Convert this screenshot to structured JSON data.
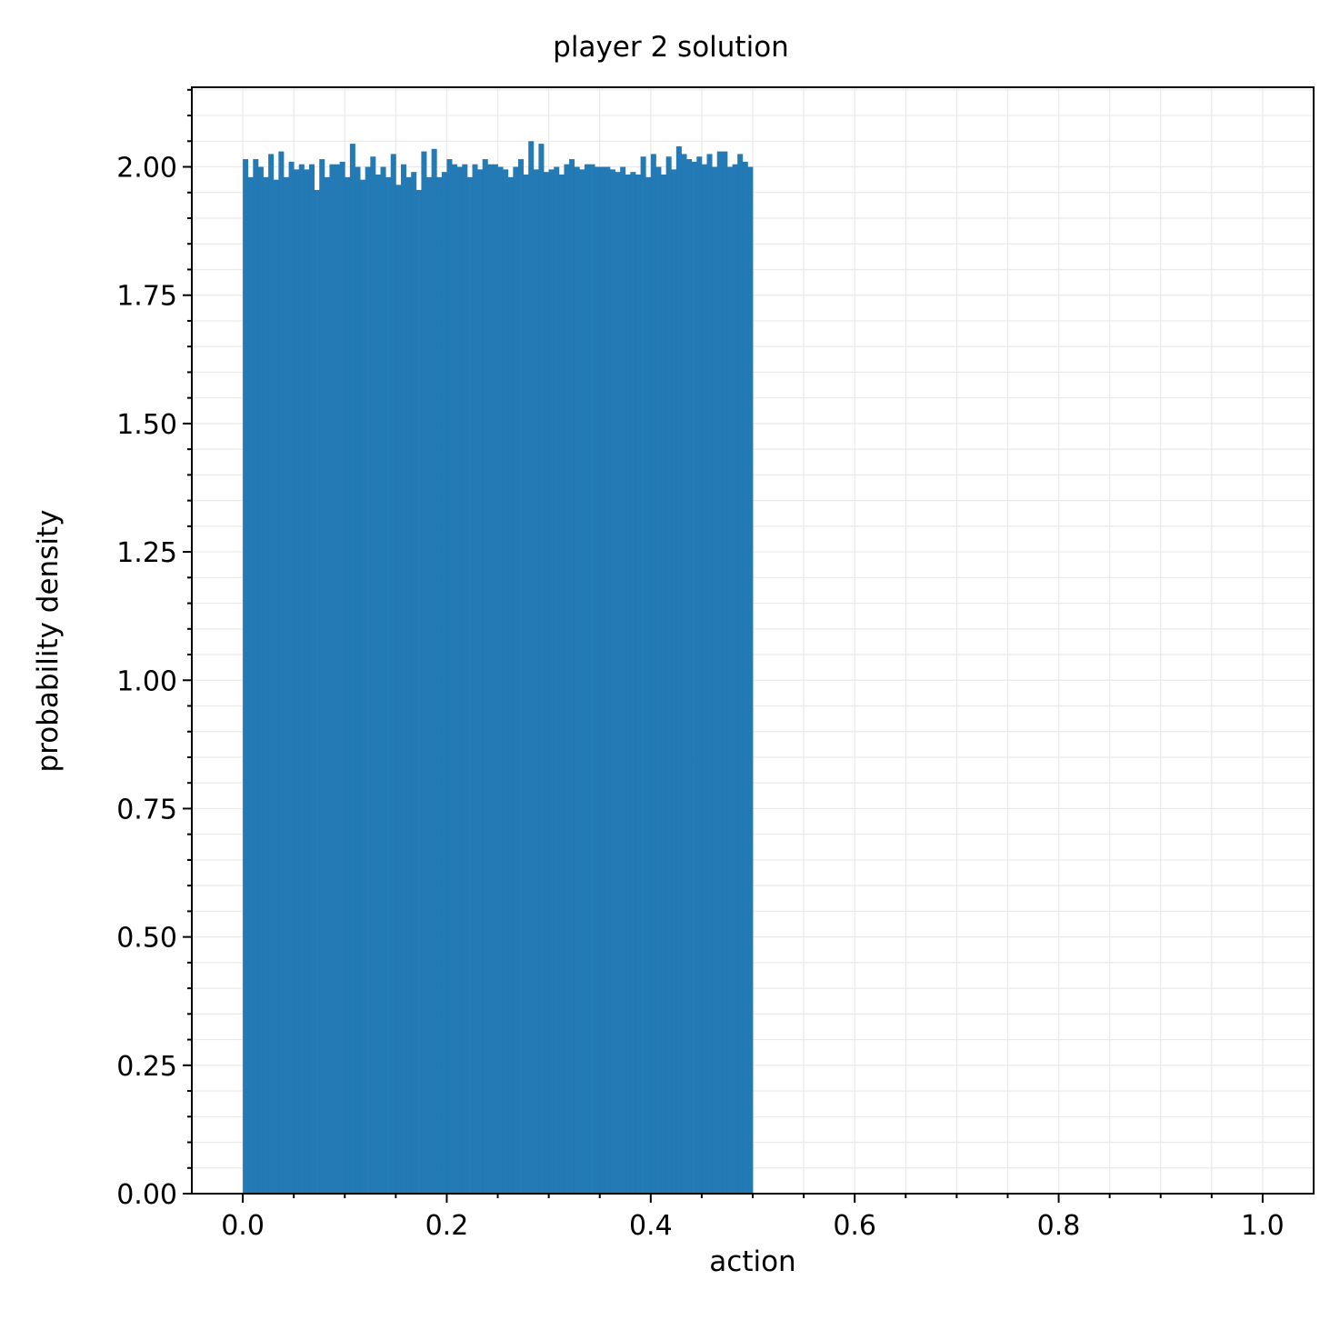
{
  "chart_data": {
    "type": "bar",
    "title": "player 2 solution",
    "xlabel": "action",
    "ylabel": "probability density",
    "xlim": [
      -0.05,
      1.05
    ],
    "ylim": [
      0,
      2.155
    ],
    "xticks": [
      "0.0",
      "0.2",
      "0.4",
      "0.6",
      "0.8",
      "1.0"
    ],
    "yticks": [
      "0.00",
      "0.25",
      "0.50",
      "0.75",
      "1.00",
      "1.25",
      "1.50",
      "1.75",
      "2.00"
    ],
    "grid": "minor",
    "bar_color": "#1f77b4",
    "bin_edges_range": [
      0.0,
      0.5
    ],
    "bin_count": 100,
    "values": [
      2.015,
      1.98,
      2.015,
      2.0,
      1.98,
      2.025,
      1.975,
      2.03,
      1.98,
      2.01,
      1.995,
      2.005,
      1.995,
      2.005,
      1.955,
      2.015,
      1.98,
      2.005,
      2.005,
      2.01,
      1.98,
      2.045,
      2.0,
      1.975,
      2.0,
      2.02,
      1.985,
      2.0,
      1.98,
      2.025,
      1.965,
      2.005,
      1.98,
      1.99,
      1.955,
      2.03,
      1.98,
      2.035,
      1.98,
      1.99,
      2.015,
      2.005,
      2.0,
      2.005,
      1.98,
      2.005,
      1.995,
      2.015,
      2.005,
      2.005,
      2.0,
      1.995,
      1.98,
      2.0,
      2.015,
      1.985,
      2.05,
      1.995,
      2.045,
      1.99,
      1.995,
      2.0,
      1.985,
      2.005,
      2.015,
      2.0,
      1.995,
      2.005,
      2.005,
      2.0,
      2.0,
      2.0,
      1.995,
      1.99,
      2.0,
      1.985,
      1.99,
      1.985,
      2.02,
      1.98,
      2.025,
      2.0,
      1.985,
      2.02,
      1.995,
      2.04,
      2.025,
      2.015,
      2.01,
      2.02,
      2.005,
      2.025,
      2.0,
      2.03,
      2.03,
      2.0,
      2.005,
      2.025,
      2.01,
      2.0
    ]
  }
}
